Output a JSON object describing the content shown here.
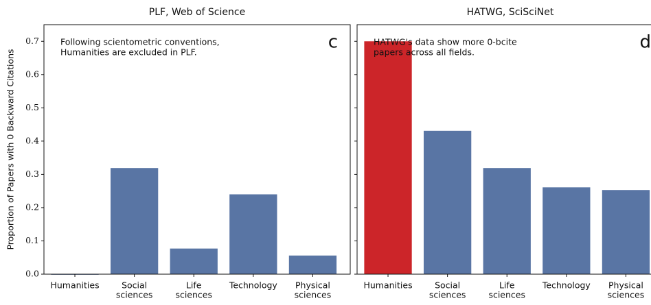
{
  "chart_data": [
    {
      "type": "bar",
      "title": "PLF, Web of Science",
      "y_label": "Proportion of Papers with 0 Backward Citations",
      "panel_label": "c",
      "annotation": [
        "Following scientometric conventions,",
        "Humanities are excluded in PLF."
      ],
      "categories": [
        [
          "Humanities"
        ],
        [
          "Social",
          "sciences"
        ],
        [
          "Life",
          "sciences"
        ],
        [
          "Technology"
        ],
        [
          "Physical",
          "sciences"
        ]
      ],
      "series": [
        {
          "colors": [
            "#5975a4",
            "#5975a4",
            "#5975a4",
            "#5975a4",
            "#5975a4"
          ],
          "values": [
            0,
            0.319,
            0.077,
            0.24,
            0.056
          ]
        }
      ],
      "ylim": [
        0,
        0.75
      ],
      "yticks": [
        {
          "value": 0,
          "label": "0.0"
        },
        0.1,
        0.2,
        0.3,
        0.4,
        0.5,
        0.6,
        0.7
      ],
      "show_ytick_labels": true
    },
    {
      "type": "bar",
      "title": "HATWG, SciSciNet",
      "panel_label": "d",
      "annotation": [
        "HATWG's data show more 0-bcite",
        "papers across all fields."
      ],
      "categories": [
        [
          "Humanities"
        ],
        [
          "Social",
          "sciences"
        ],
        [
          "Life",
          "sciences"
        ],
        [
          "Technology"
        ],
        [
          "Physical",
          "sciences"
        ]
      ],
      "series": [
        {
          "colors": [
            "#cc2529",
            "#5975a4",
            "#5975a4",
            "#5975a4",
            "#5975a4"
          ],
          "values": [
            0.7,
            0.431,
            0.319,
            0.261,
            0.253
          ]
        }
      ],
      "ylim": [
        0,
        0.75
      ],
      "yticks": [
        {
          "value": 0,
          "label": "0.0"
        },
        0.1,
        0.2,
        0.3,
        0.4,
        0.5,
        0.6,
        0.7
      ],
      "show_ytick_labels": false
    }
  ]
}
